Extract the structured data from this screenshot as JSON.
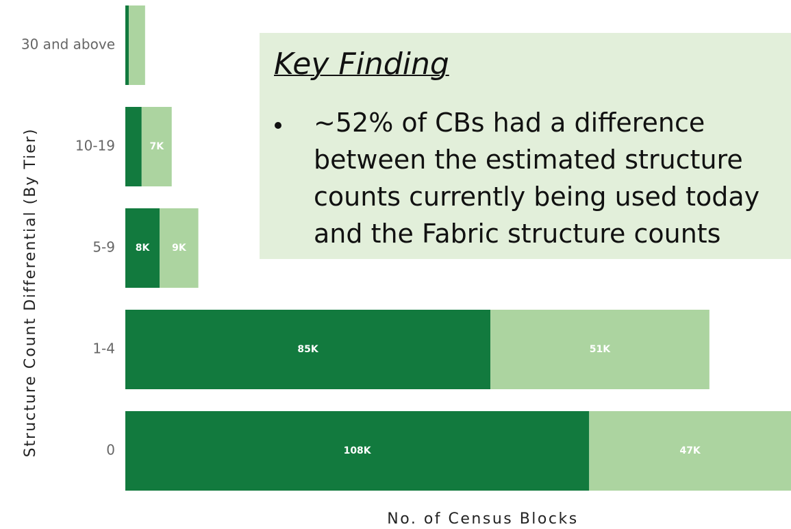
{
  "chart_data": {
    "type": "stacked_barh",
    "categories": [
      "30 and above",
      "10-19",
      "5-9",
      "1-4",
      "0"
    ],
    "series": [
      {
        "color": "#127a3e",
        "values": [
          800,
          3800,
          8000,
          85000,
          108000
        ],
        "value_labels": [
          null,
          null,
          "8K",
          "85K",
          "108K"
        ]
      },
      {
        "color": "#acd4a0",
        "values": [
          3800,
          7000,
          9000,
          51000,
          47000
        ],
        "value_labels": [
          null,
          "7K",
          "9K",
          "51K",
          "47K"
        ]
      }
    ],
    "xlim": [
      0,
      155000
    ],
    "ylabel": "Structure Count Differential (By Tier)",
    "xlabel": "No. of Census Blocks",
    "annotation": {
      "title": "Key Finding",
      "text": "~52% of CBs had a difference between the estimated structure counts currently being used today and the Fabric structure counts"
    }
  }
}
